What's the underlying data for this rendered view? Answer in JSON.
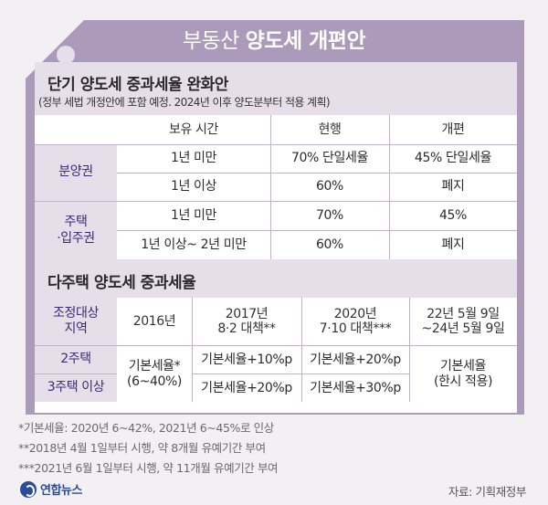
{
  "title_light": "부동산",
  "title_bold": "양도세 개편안",
  "section1": {
    "title": "단기 양도세 중과세율 완화안",
    "subtitle": "(정부 세법 개정안에 포함 예정. 2024년 이후 양도분부터 적용 계획)",
    "headers": [
      "보유 시간",
      "현행",
      "개편"
    ],
    "groups": [
      {
        "label_lines": [
          "분양권"
        ],
        "rows": [
          [
            "1년 미만",
            "70% 단일세율",
            "45% 단일세율"
          ],
          [
            "1년 이상",
            "60%",
            "폐지"
          ]
        ]
      },
      {
        "label_lines": [
          "주택",
          "·입주권"
        ],
        "rows": [
          [
            "1년 미만",
            "70%",
            "45%"
          ],
          [
            "1년 이상~ 2년 미만",
            "60%",
            "폐지"
          ]
        ]
      }
    ]
  },
  "section2": {
    "title": "다주택 양도세 중과세율",
    "corner_lines": [
      "조정대상",
      "지역"
    ],
    "headers": [
      [
        "2016년"
      ],
      [
        "2017년",
        "8·2 대책**"
      ],
      [
        "2020년",
        "7·10 대책***"
      ],
      [
        "22년 5월 9일",
        "~24년 5월 9일"
      ]
    ],
    "row_labels": [
      "2주택",
      "3주택 이상"
    ],
    "base_lines": [
      "기본세율*",
      "(6~40%)"
    ],
    "col2017": [
      "기본세율+10%p",
      "기본세율+20%p"
    ],
    "col2020": [
      "기본세율+20%p",
      "기본세율+30%p"
    ],
    "last_lines": [
      "기본세율",
      "(한시 적용)"
    ]
  },
  "notes": [
    "*기본세율: 2020년 6~42%, 2021년 6~45%로 인상",
    "**2018년 4월 1일부터 시행, 약 8개월 유예기간 부여",
    "***2021년 6월 1일부터 시행, 약 11개월 유예기간 부여"
  ],
  "logo_text": "연합뉴스",
  "source": "자료: 기획재정부",
  "colors": {
    "tag": "#ab9ab9",
    "band": "#e6dfea",
    "row_label": "#3c2a73",
    "logo": "#2a4b9b"
  }
}
